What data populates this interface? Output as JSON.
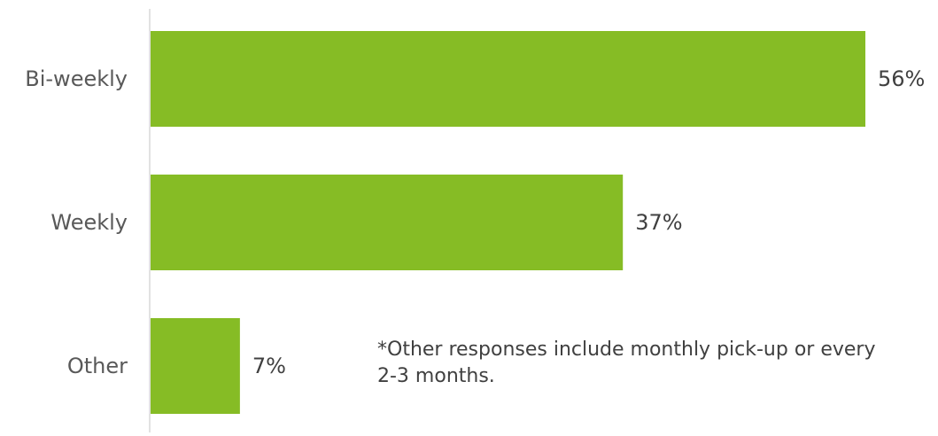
{
  "chart_data": {
    "type": "bar",
    "orientation": "horizontal",
    "categories": [
      "Bi-weekly",
      "Weekly",
      "Other"
    ],
    "values": [
      56,
      37,
      7
    ],
    "data_labels": [
      "56%",
      "37%",
      "7%"
    ],
    "value_unit": "%",
    "bar_color": "#86BC25",
    "axis_color": "#D9D9D9",
    "xlim": [
      0,
      56
    ],
    "title": "",
    "xlabel": "",
    "ylabel": "",
    "grid": false,
    "legend": "none",
    "annotation": {
      "lines": [
        "*Other responses include monthly pick-up or every",
        "2-3 months."
      ]
    }
  }
}
